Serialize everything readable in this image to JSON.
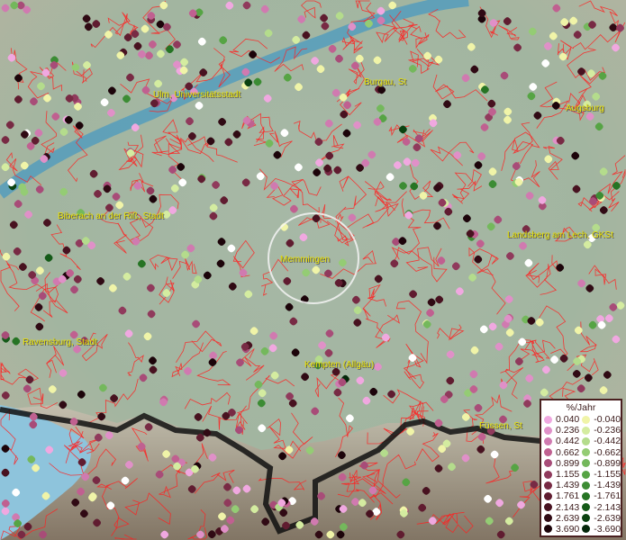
{
  "map": {
    "cities": [
      {
        "name": "Ulm, Universitätsstadt"
      },
      {
        "name": "Burgau, St"
      },
      {
        "name": "Augsburg"
      },
      {
        "name": "Biberach an der Riß, Stadt"
      },
      {
        "name": "Landsberg am Lech, GKSt"
      },
      {
        "name": "Memmingen"
      },
      {
        "name": "Ravensburg, Stadt"
      },
      {
        "name": "Kempten (Allgäu)"
      },
      {
        "name": "Füssen, St"
      }
    ],
    "colors": {
      "boundary": "#ff2020",
      "label": "#e8e000",
      "river": "#4a9ac0",
      "border": "#111111"
    }
  },
  "legend": {
    "title": "%/Jahr",
    "positive": [
      {
        "value": "0.040",
        "color": "#f0a8e0"
      },
      {
        "value": "0.236",
        "color": "#e090c8"
      },
      {
        "value": "0.442",
        "color": "#d07ab0"
      },
      {
        "value": "0.662",
        "color": "#c06090"
      },
      {
        "value": "0.899",
        "color": "#a84c78"
      },
      {
        "value": "1.155",
        "color": "#903a5c"
      },
      {
        "value": "1.439",
        "color": "#782a44"
      },
      {
        "value": "1.761",
        "color": "#601c30"
      },
      {
        "value": "2.143",
        "color": "#481220"
      },
      {
        "value": "2.639",
        "color": "#300a14"
      },
      {
        "value": "3.690",
        "color": "#1c040a"
      }
    ],
    "negative": [
      {
        "value": "-0.040",
        "color": "#f0f4a8"
      },
      {
        "value": "-0.236",
        "color": "#d4eca0"
      },
      {
        "value": "-0.442",
        "color": "#b4dc8c"
      },
      {
        "value": "-0.662",
        "color": "#94cc74"
      },
      {
        "value": "-0.899",
        "color": "#74b85c"
      },
      {
        "value": "-1.155",
        "color": "#56a444"
      },
      {
        "value": "-1.439",
        "color": "#3c8c34"
      },
      {
        "value": "-1.761",
        "color": "#267424"
      },
      {
        "value": "-2.143",
        "color": "#145a18"
      },
      {
        "value": "-2.639",
        "color": "#0a4210"
      },
      {
        "value": "-3.690",
        "color": "#04280a"
      }
    ]
  }
}
